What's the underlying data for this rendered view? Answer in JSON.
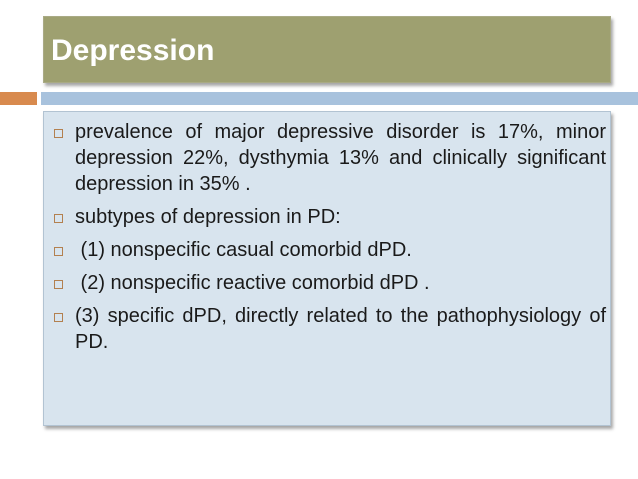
{
  "slide": {
    "title": "Depression",
    "bullets": [
      "prevalence of major depressive disorder is 17%, minor depression 22%, dysthymia 13% and clinically significant depression in 35% .",
      "subtypes of depression in PD:",
      " (1) nonspecific casual comorbid dPD.",
      " (2) nonspecific reactive comorbid dPD .",
      "(3) specific dPD, directly related to the pathophysiology of PD."
    ]
  },
  "colors": {
    "title_bar": "#9ea070",
    "accent_orange": "#d88a4e",
    "accent_blue": "#a8c2dd",
    "content_bg": "#d8e4ee",
    "bullet_marker": "#b3804f"
  }
}
